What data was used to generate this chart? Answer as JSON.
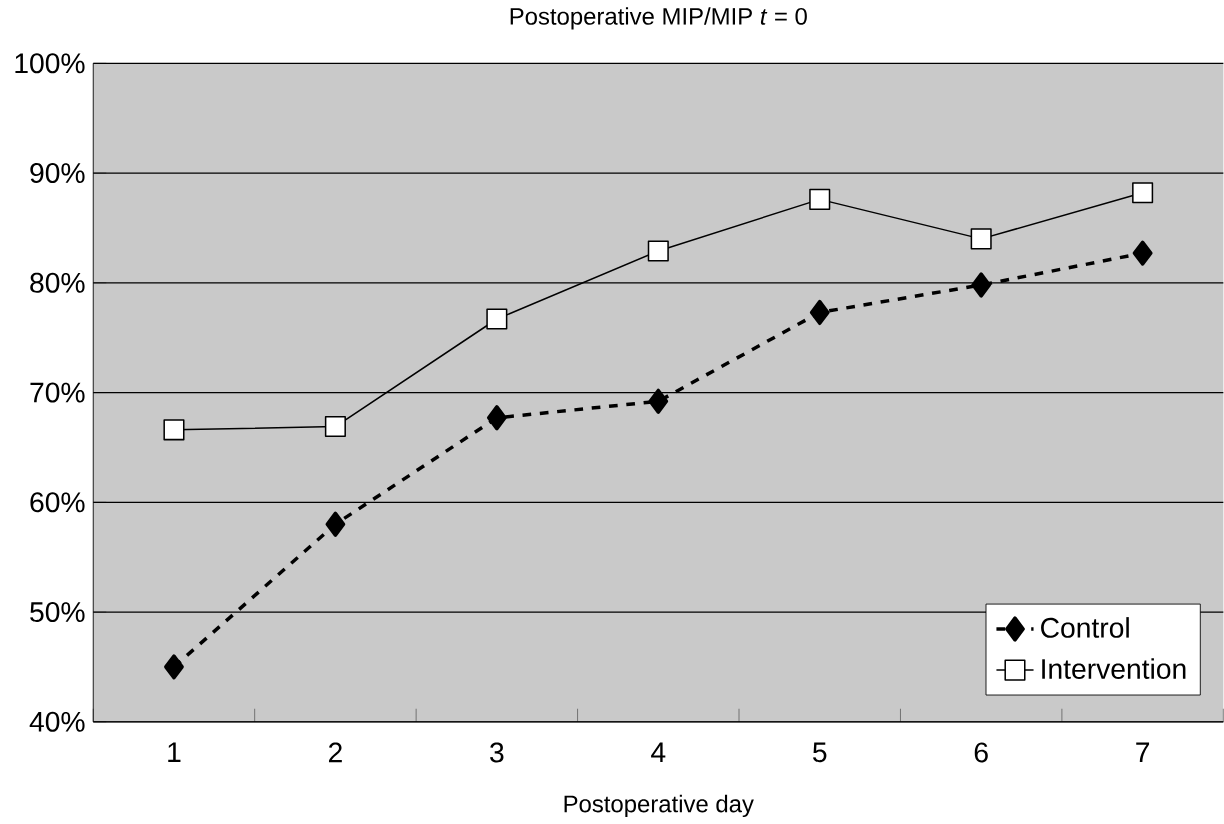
{
  "chart_data": {
    "type": "line",
    "title": "Postoperative MIP/MIP *t* = 0",
    "xlabel": "Postoperative day",
    "categories": [
      "1",
      "2",
      "3",
      "4",
      "5",
      "6",
      "7"
    ],
    "series": [
      {
        "name": "Control",
        "color": "#000000",
        "marker": "diamond",
        "line_style": "dashed",
        "values": [
          45,
          58,
          67.7,
          69.2,
          77.3,
          79.8,
          82.7
        ]
      },
      {
        "name": "Intervention",
        "color": "#000000",
        "marker": "square",
        "line_style": "solid",
        "values": [
          66.6,
          66.9,
          76.7,
          82.9,
          87.6,
          84,
          88.2
        ]
      }
    ],
    "ylim": [
      40,
      100
    ],
    "yticks": [
      {
        "value": 40,
        "label": "40%"
      },
      {
        "value": 50,
        "label": "50%"
      },
      {
        "value": 60,
        "label": "60%"
      },
      {
        "value": 70,
        "label": "70%"
      },
      {
        "value": 80,
        "label": "80%"
      },
      {
        "value": 90,
        "label": "90%"
      },
      {
        "value": 100,
        "label": "100%"
      }
    ],
    "grid": "y",
    "legend": "bottom right"
  }
}
